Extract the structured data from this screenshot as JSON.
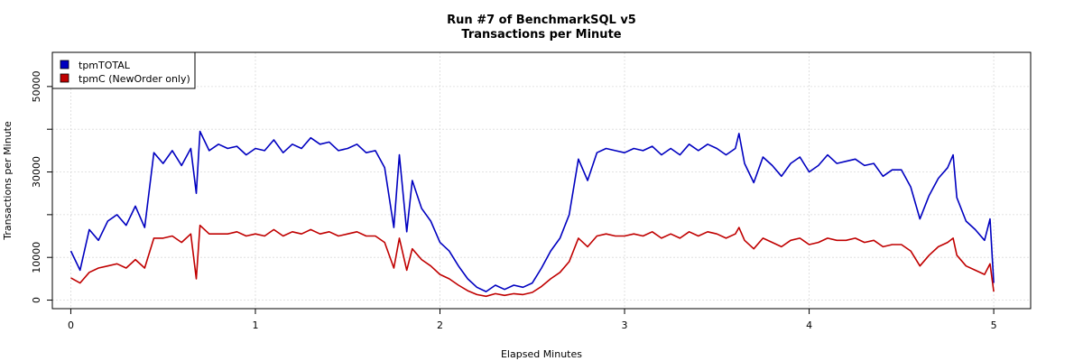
{
  "chart_data": {
    "type": "line",
    "title": "Run #7 of BenchmarkSQL v5",
    "subtitle": "Transactions per Minute",
    "xlabel": "Elapsed Minutes",
    "ylabel": "Transactions per Minute",
    "xlim": [
      -0.1,
      5.2
    ],
    "ylim": [
      -2000,
      58000
    ],
    "x_ticks": [
      0,
      1,
      2,
      3,
      4,
      5
    ],
    "y_ticks": [
      0,
      10000,
      30000,
      50000
    ],
    "grid": true,
    "legend_position": "top-left",
    "series": [
      {
        "name": "tpmTOTAL",
        "color": "#0000c0",
        "points": [
          [
            0.0,
            11500
          ],
          [
            0.05,
            7000
          ],
          [
            0.1,
            16500
          ],
          [
            0.15,
            14000
          ],
          [
            0.2,
            18500
          ],
          [
            0.25,
            20000
          ],
          [
            0.3,
            17500
          ],
          [
            0.35,
            22000
          ],
          [
            0.4,
            17000
          ],
          [
            0.45,
            34500
          ],
          [
            0.5,
            32000
          ],
          [
            0.55,
            35000
          ],
          [
            0.6,
            31500
          ],
          [
            0.65,
            35500
          ],
          [
            0.68,
            25000
          ],
          [
            0.7,
            39500
          ],
          [
            0.75,
            35000
          ],
          [
            0.8,
            36500
          ],
          [
            0.85,
            35500
          ],
          [
            0.9,
            36000
          ],
          [
            0.95,
            34000
          ],
          [
            1.0,
            35500
          ],
          [
            1.05,
            35000
          ],
          [
            1.1,
            37500
          ],
          [
            1.15,
            34500
          ],
          [
            1.2,
            36500
          ],
          [
            1.25,
            35500
          ],
          [
            1.3,
            38000
          ],
          [
            1.35,
            36500
          ],
          [
            1.4,
            37000
          ],
          [
            1.45,
            35000
          ],
          [
            1.5,
            35500
          ],
          [
            1.55,
            36500
          ],
          [
            1.6,
            34500
          ],
          [
            1.65,
            35000
          ],
          [
            1.7,
            31000
          ],
          [
            1.75,
            17000
          ],
          [
            1.78,
            34000
          ],
          [
            1.82,
            16000
          ],
          [
            1.85,
            28000
          ],
          [
            1.9,
            21500
          ],
          [
            1.95,
            18500
          ],
          [
            2.0,
            13500
          ],
          [
            2.05,
            11500
          ],
          [
            2.1,
            8000
          ],
          [
            2.15,
            5000
          ],
          [
            2.2,
            3000
          ],
          [
            2.25,
            2000
          ],
          [
            2.3,
            3500
          ],
          [
            2.35,
            2500
          ],
          [
            2.4,
            3500
          ],
          [
            2.45,
            3000
          ],
          [
            2.5,
            4000
          ],
          [
            2.55,
            7500
          ],
          [
            2.6,
            11500
          ],
          [
            2.65,
            14500
          ],
          [
            2.7,
            20000
          ],
          [
            2.75,
            33000
          ],
          [
            2.8,
            28000
          ],
          [
            2.85,
            34500
          ],
          [
            2.9,
            35500
          ],
          [
            2.95,
            35000
          ],
          [
            3.0,
            34500
          ],
          [
            3.05,
            35500
          ],
          [
            3.1,
            35000
          ],
          [
            3.15,
            36000
          ],
          [
            3.2,
            34000
          ],
          [
            3.25,
            35500
          ],
          [
            3.3,
            34000
          ],
          [
            3.35,
            36500
          ],
          [
            3.4,
            35000
          ],
          [
            3.45,
            36500
          ],
          [
            3.5,
            35500
          ],
          [
            3.55,
            34000
          ],
          [
            3.6,
            35500
          ],
          [
            3.62,
            39000
          ],
          [
            3.65,
            32000
          ],
          [
            3.7,
            27500
          ],
          [
            3.75,
            33500
          ],
          [
            3.8,
            31500
          ],
          [
            3.85,
            29000
          ],
          [
            3.9,
            32000
          ],
          [
            3.95,
            33500
          ],
          [
            4.0,
            30000
          ],
          [
            4.05,
            31500
          ],
          [
            4.1,
            34000
          ],
          [
            4.15,
            32000
          ],
          [
            4.2,
            32500
          ],
          [
            4.25,
            33000
          ],
          [
            4.3,
            31500
          ],
          [
            4.35,
            32000
          ],
          [
            4.4,
            29000
          ],
          [
            4.45,
            30500
          ],
          [
            4.5,
            30500
          ],
          [
            4.55,
            26500
          ],
          [
            4.6,
            19000
          ],
          [
            4.65,
            24500
          ],
          [
            4.7,
            28500
          ],
          [
            4.75,
            31000
          ],
          [
            4.78,
            34000
          ],
          [
            4.8,
            24000
          ],
          [
            4.85,
            18500
          ],
          [
            4.9,
            16500
          ],
          [
            4.95,
            14000
          ],
          [
            4.98,
            19000
          ],
          [
            5.0,
            4000
          ]
        ]
      },
      {
        "name": "tpmC (NewOrder only)",
        "color": "#c00000",
        "points": [
          [
            0.0,
            5200
          ],
          [
            0.05,
            4000
          ],
          [
            0.1,
            6500
          ],
          [
            0.15,
            7500
          ],
          [
            0.2,
            8000
          ],
          [
            0.25,
            8500
          ],
          [
            0.3,
            7500
          ],
          [
            0.35,
            9500
          ],
          [
            0.4,
            7500
          ],
          [
            0.45,
            14500
          ],
          [
            0.5,
            14500
          ],
          [
            0.55,
            15000
          ],
          [
            0.6,
            13500
          ],
          [
            0.65,
            15500
          ],
          [
            0.68,
            5000
          ],
          [
            0.7,
            17500
          ],
          [
            0.75,
            15500
          ],
          [
            0.8,
            15500
          ],
          [
            0.85,
            15500
          ],
          [
            0.9,
            16000
          ],
          [
            0.95,
            15000
          ],
          [
            1.0,
            15500
          ],
          [
            1.05,
            15000
          ],
          [
            1.1,
            16500
          ],
          [
            1.15,
            15000
          ],
          [
            1.2,
            16000
          ],
          [
            1.25,
            15500
          ],
          [
            1.3,
            16500
          ],
          [
            1.35,
            15500
          ],
          [
            1.4,
            16000
          ],
          [
            1.45,
            15000
          ],
          [
            1.5,
            15500
          ],
          [
            1.55,
            16000
          ],
          [
            1.6,
            15000
          ],
          [
            1.65,
            15000
          ],
          [
            1.7,
            13500
          ],
          [
            1.75,
            7500
          ],
          [
            1.78,
            14500
          ],
          [
            1.82,
            7000
          ],
          [
            1.85,
            12000
          ],
          [
            1.9,
            9500
          ],
          [
            1.95,
            8000
          ],
          [
            2.0,
            6000
          ],
          [
            2.05,
            5000
          ],
          [
            2.1,
            3500
          ],
          [
            2.15,
            2200
          ],
          [
            2.2,
            1300
          ],
          [
            2.25,
            900
          ],
          [
            2.3,
            1500
          ],
          [
            2.35,
            1100
          ],
          [
            2.4,
            1500
          ],
          [
            2.45,
            1300
          ],
          [
            2.5,
            1800
          ],
          [
            2.55,
            3200
          ],
          [
            2.6,
            5000
          ],
          [
            2.65,
            6500
          ],
          [
            2.7,
            9000
          ],
          [
            2.75,
            14500
          ],
          [
            2.8,
            12500
          ],
          [
            2.85,
            15000
          ],
          [
            2.9,
            15500
          ],
          [
            2.95,
            15000
          ],
          [
            3.0,
            15000
          ],
          [
            3.05,
            15500
          ],
          [
            3.1,
            15000
          ],
          [
            3.15,
            16000
          ],
          [
            3.2,
            14500
          ],
          [
            3.25,
            15500
          ],
          [
            3.3,
            14500
          ],
          [
            3.35,
            16000
          ],
          [
            3.4,
            15000
          ],
          [
            3.45,
            16000
          ],
          [
            3.5,
            15500
          ],
          [
            3.55,
            14500
          ],
          [
            3.6,
            15500
          ],
          [
            3.62,
            17000
          ],
          [
            3.65,
            14000
          ],
          [
            3.7,
            12000
          ],
          [
            3.75,
            14500
          ],
          [
            3.8,
            13500
          ],
          [
            3.85,
            12500
          ],
          [
            3.9,
            14000
          ],
          [
            3.95,
            14500
          ],
          [
            4.0,
            13000
          ],
          [
            4.05,
            13500
          ],
          [
            4.1,
            14500
          ],
          [
            4.15,
            14000
          ],
          [
            4.2,
            14000
          ],
          [
            4.25,
            14500
          ],
          [
            4.3,
            13500
          ],
          [
            4.35,
            14000
          ],
          [
            4.4,
            12500
          ],
          [
            4.45,
            13000
          ],
          [
            4.5,
            13000
          ],
          [
            4.55,
            11500
          ],
          [
            4.6,
            8000
          ],
          [
            4.65,
            10500
          ],
          [
            4.7,
            12500
          ],
          [
            4.75,
            13500
          ],
          [
            4.78,
            14500
          ],
          [
            4.8,
            10500
          ],
          [
            4.85,
            8000
          ],
          [
            4.9,
            7000
          ],
          [
            4.95,
            6000
          ],
          [
            4.98,
            8500
          ],
          [
            5.0,
            2000
          ]
        ]
      }
    ]
  }
}
